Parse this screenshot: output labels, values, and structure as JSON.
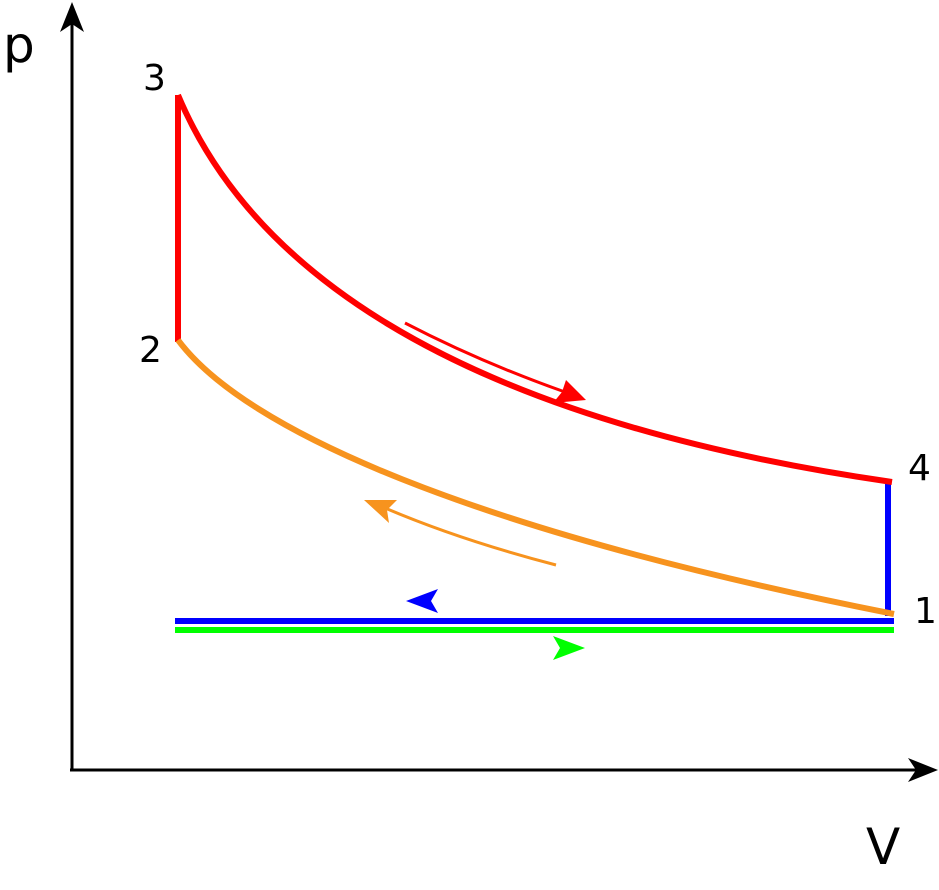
{
  "axes": {
    "y_label": "p",
    "x_label": "V"
  },
  "points": [
    {
      "id": "1",
      "label": "1"
    },
    {
      "id": "2",
      "label": "2"
    },
    {
      "id": "3",
      "label": "3"
    },
    {
      "id": "4",
      "label": "4"
    }
  ],
  "colors": {
    "axis": "#000000",
    "expansion_3_4": "#ff0000",
    "compression_1_2": "#f7931e",
    "heat_addition_2_3": "#ff0000",
    "heat_rejection_4_1": "#0000ff",
    "exhaust": "#0000ff",
    "intake": "#00ff00"
  }
}
